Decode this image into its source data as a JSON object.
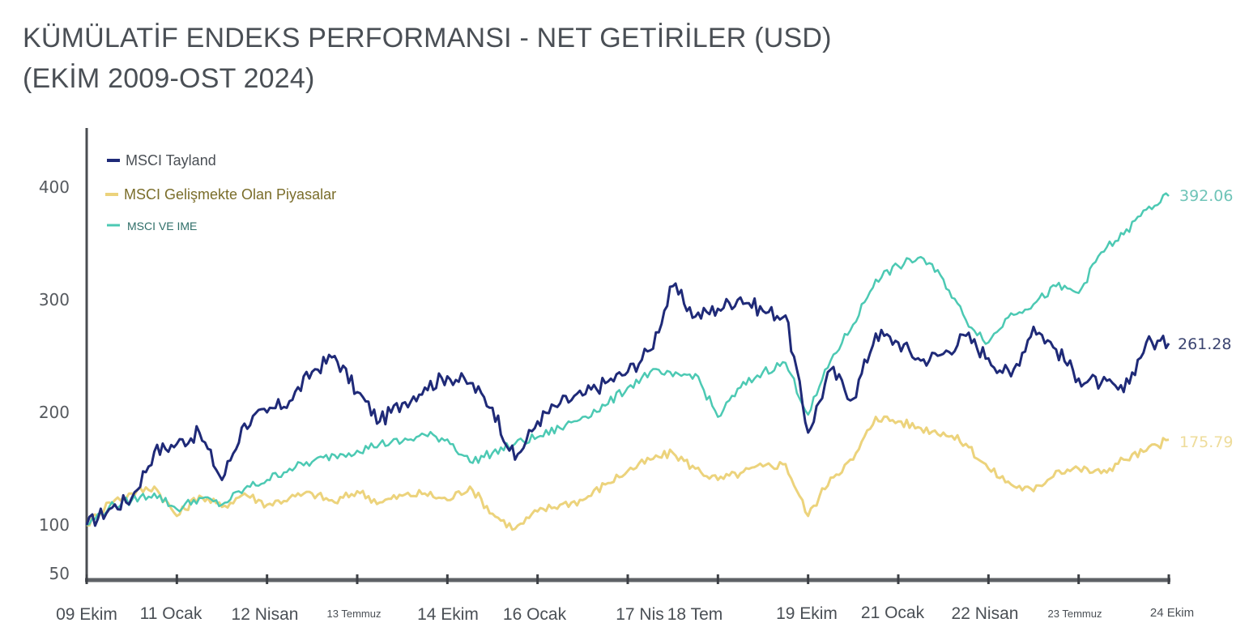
{
  "title": {
    "line1": "KÜMÜLATİF ENDEKS PERFORMANSI - NET GETİRİLER (USD)",
    "line2": "(EKİM 2009-OST 2024)"
  },
  "colors": {
    "thailand": "#1f2a78",
    "emerging": "#ecd37c",
    "acwi_imi": "#4cc9b3",
    "axis": "#4a4d52",
    "legend_emerging_text": "#7a6d2a",
    "legend_acwi_text": "#2e6e68",
    "legend_thai_text": "#4a4f55"
  },
  "legend": [
    {
      "label": "MSCI Tayland",
      "key": "thailand"
    },
    {
      "label": "MSCI Gelişmekte Olan Piyasalar",
      "key": "emerging"
    },
    {
      "label": "MSCI VE IME",
      "key": "acwi_imi"
    }
  ],
  "end_labels": {
    "thailand": "261.28",
    "emerging": "175.79",
    "acwi_imi": "392.06"
  },
  "chart_data": {
    "type": "line",
    "title": "KÜMÜLATİF ENDEKS PERFORMANSI - NET GETİRİLER (USD) (EKİM 2009-OST 2024)",
    "xlabel": "",
    "ylabel": "",
    "ylim": [
      50,
      450
    ],
    "yticks": [
      50,
      100,
      200,
      300,
      400
    ],
    "categories": [
      "09 Ekim",
      "11 Ocak",
      "12 Nisan",
      "13 Temmuz",
      "14 Ekim",
      "16 Ocak",
      "17 Nis",
      "18 Tem",
      "19 Ekim",
      "21 Ocak",
      "22 Nisan",
      "23 Temmuz",
      "24 Ekim"
    ],
    "grid": false,
    "legend_position": "upper-left",
    "x": [
      0,
      0.25,
      0.5,
      0.75,
      1,
      1.25,
      1.5,
      1.75,
      2,
      2.25,
      2.5,
      2.75,
      3,
      3.25,
      3.5,
      3.75,
      4,
      4.25,
      4.5,
      4.75,
      5,
      5.25,
      5.5,
      5.75,
      6,
      6.25,
      6.5,
      6.75,
      7,
      7.25,
      7.5,
      7.75,
      8,
      8.25,
      8.5,
      8.75,
      9,
      9.25,
      9.5,
      9.75,
      10,
      10.25,
      10.5,
      10.75,
      11,
      11.25,
      11.5,
      11.75,
      12
    ],
    "series": [
      {
        "name": "MSCI Tayland",
        "key": "thailand",
        "values": [
          100,
          114,
          124,
          165,
          172,
          182,
          140,
          190,
          200,
          210,
          236,
          250,
          218,
          192,
          208,
          222,
          232,
          226,
          204,
          158,
          192,
          208,
          215,
          226,
          236,
          255,
          312,
          285,
          292,
          302,
          290,
          286,
          182,
          238,
          212,
          270,
          262,
          246,
          252,
          268,
          248,
          232,
          276,
          256,
          230,
          226,
          218,
          262,
          261.28
        ]
      },
      {
        "name": "MSCI Gelişmekte Olan Piyasalar",
        "key": "emerging",
        "values": [
          100,
          120,
          128,
          134,
          108,
          126,
          116,
          128,
          118,
          124,
          128,
          120,
          130,
          120,
          126,
          128,
          122,
          134,
          110,
          96,
          112,
          118,
          122,
          136,
          148,
          158,
          164,
          150,
          140,
          146,
          152,
          154,
          108,
          142,
          158,
          196,
          192,
          186,
          182,
          172,
          150,
          136,
          130,
          148,
          150,
          146,
          158,
          166,
          175.79
        ]
      },
      {
        "name": "MSCI VE IME",
        "key": "acwi_imi",
        "values": [
          100,
          116,
          122,
          128,
          114,
          124,
          118,
          132,
          140,
          150,
          156,
          162,
          166,
          172,
          174,
          180,
          176,
          156,
          164,
          172,
          178,
          186,
          196,
          206,
          222,
          236,
          232,
          234,
          196,
          222,
          236,
          244,
          198,
          246,
          278,
          318,
          330,
          338,
          318,
          282,
          262,
          288,
          296,
          312,
          306,
          342,
          358,
          380,
          392.06
        ]
      }
    ]
  }
}
